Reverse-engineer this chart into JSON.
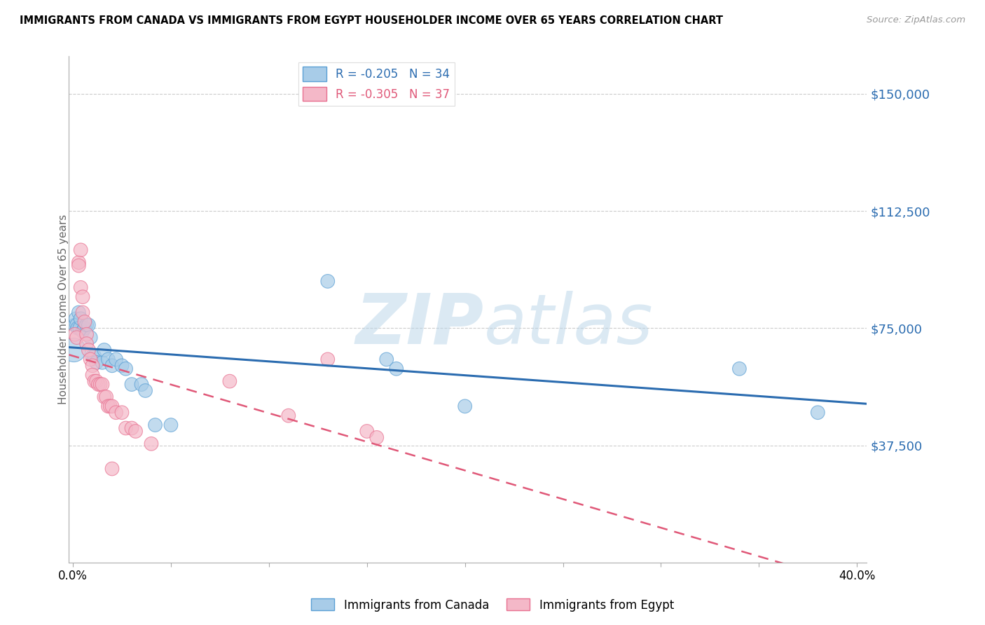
{
  "title": "IMMIGRANTS FROM CANADA VS IMMIGRANTS FROM EGYPT HOUSEHOLDER INCOME OVER 65 YEARS CORRELATION CHART",
  "source": "Source: ZipAtlas.com",
  "ylabel": "Householder Income Over 65 years",
  "ytick_labels": [
    "$37,500",
    "$75,000",
    "$112,500",
    "$150,000"
  ],
  "ytick_vals": [
    37500,
    75000,
    112500,
    150000
  ],
  "ylim": [
    0,
    162000
  ],
  "xlim": [
    -0.002,
    0.405
  ],
  "watermark_zip": "ZIP",
  "watermark_atlas": "atlas",
  "canada_color": "#a8cce8",
  "egypt_color": "#f4b8c8",
  "canada_edge_color": "#5a9fd4",
  "egypt_edge_color": "#e87090",
  "canada_line_color": "#2b6cb0",
  "egypt_line_color": "#e05878",
  "canada_R": -0.205,
  "canada_N": 34,
  "egypt_R": -0.305,
  "egypt_N": 37,
  "canada_points": [
    [
      0.0005,
      68000,
      600
    ],
    [
      0.001,
      76000,
      200
    ],
    [
      0.0015,
      78000,
      200
    ],
    [
      0.002,
      76000,
      200
    ],
    [
      0.0025,
      75000,
      200
    ],
    [
      0.003,
      80000,
      200
    ],
    [
      0.0035,
      75000,
      200
    ],
    [
      0.004,
      78000,
      200
    ],
    [
      0.005,
      74000,
      200
    ],
    [
      0.006,
      75000,
      200
    ],
    [
      0.007,
      76000,
      200
    ],
    [
      0.008,
      76000,
      200
    ],
    [
      0.009,
      72000,
      200
    ],
    [
      0.01,
      66000,
      200
    ],
    [
      0.011,
      66000,
      200
    ],
    [
      0.012,
      64000,
      200
    ],
    [
      0.015,
      64000,
      200
    ],
    [
      0.016,
      68000,
      200
    ],
    [
      0.018,
      65000,
      200
    ],
    [
      0.02,
      63000,
      200
    ],
    [
      0.022,
      65000,
      200
    ],
    [
      0.025,
      63000,
      200
    ],
    [
      0.027,
      62000,
      200
    ],
    [
      0.03,
      57000,
      200
    ],
    [
      0.035,
      57000,
      200
    ],
    [
      0.037,
      55000,
      200
    ],
    [
      0.042,
      44000,
      200
    ],
    [
      0.05,
      44000,
      200
    ],
    [
      0.13,
      90000,
      200
    ],
    [
      0.16,
      65000,
      200
    ],
    [
      0.165,
      62000,
      200
    ],
    [
      0.2,
      50000,
      200
    ],
    [
      0.34,
      62000,
      200
    ],
    [
      0.38,
      48000,
      200
    ]
  ],
  "egypt_points": [
    [
      0.001,
      73000,
      200
    ],
    [
      0.002,
      72000,
      200
    ],
    [
      0.003,
      96000,
      200
    ],
    [
      0.003,
      95000,
      200
    ],
    [
      0.004,
      100000,
      200
    ],
    [
      0.004,
      88000,
      200
    ],
    [
      0.005,
      85000,
      200
    ],
    [
      0.005,
      80000,
      200
    ],
    [
      0.006,
      77000,
      200
    ],
    [
      0.007,
      73000,
      200
    ],
    [
      0.007,
      70000,
      200
    ],
    [
      0.008,
      68000,
      200
    ],
    [
      0.009,
      65000,
      200
    ],
    [
      0.01,
      63000,
      200
    ],
    [
      0.01,
      60000,
      200
    ],
    [
      0.011,
      58000,
      200
    ],
    [
      0.012,
      58000,
      200
    ],
    [
      0.013,
      57000,
      200
    ],
    [
      0.014,
      57000,
      200
    ],
    [
      0.015,
      57000,
      200
    ],
    [
      0.016,
      53000,
      200
    ],
    [
      0.017,
      53000,
      200
    ],
    [
      0.018,
      50000,
      200
    ],
    [
      0.019,
      50000,
      200
    ],
    [
      0.02,
      50000,
      200
    ],
    [
      0.022,
      48000,
      200
    ],
    [
      0.025,
      48000,
      200
    ],
    [
      0.027,
      43000,
      200
    ],
    [
      0.03,
      43000,
      200
    ],
    [
      0.032,
      42000,
      200
    ],
    [
      0.04,
      38000,
      200
    ],
    [
      0.08,
      58000,
      200
    ],
    [
      0.11,
      47000,
      200
    ],
    [
      0.13,
      65000,
      200
    ],
    [
      0.15,
      42000,
      200
    ],
    [
      0.155,
      40000,
      200
    ],
    [
      0.02,
      30000,
      200
    ]
  ],
  "xtick_positions": [
    0.0,
    0.05,
    0.1,
    0.15,
    0.2,
    0.25,
    0.3,
    0.35,
    0.4
  ],
  "xtick_show_labels": [
    0.0,
    0.4
  ],
  "xtick_label_map": {
    "0.0": "0.0%",
    "0.4": "40.0%"
  }
}
